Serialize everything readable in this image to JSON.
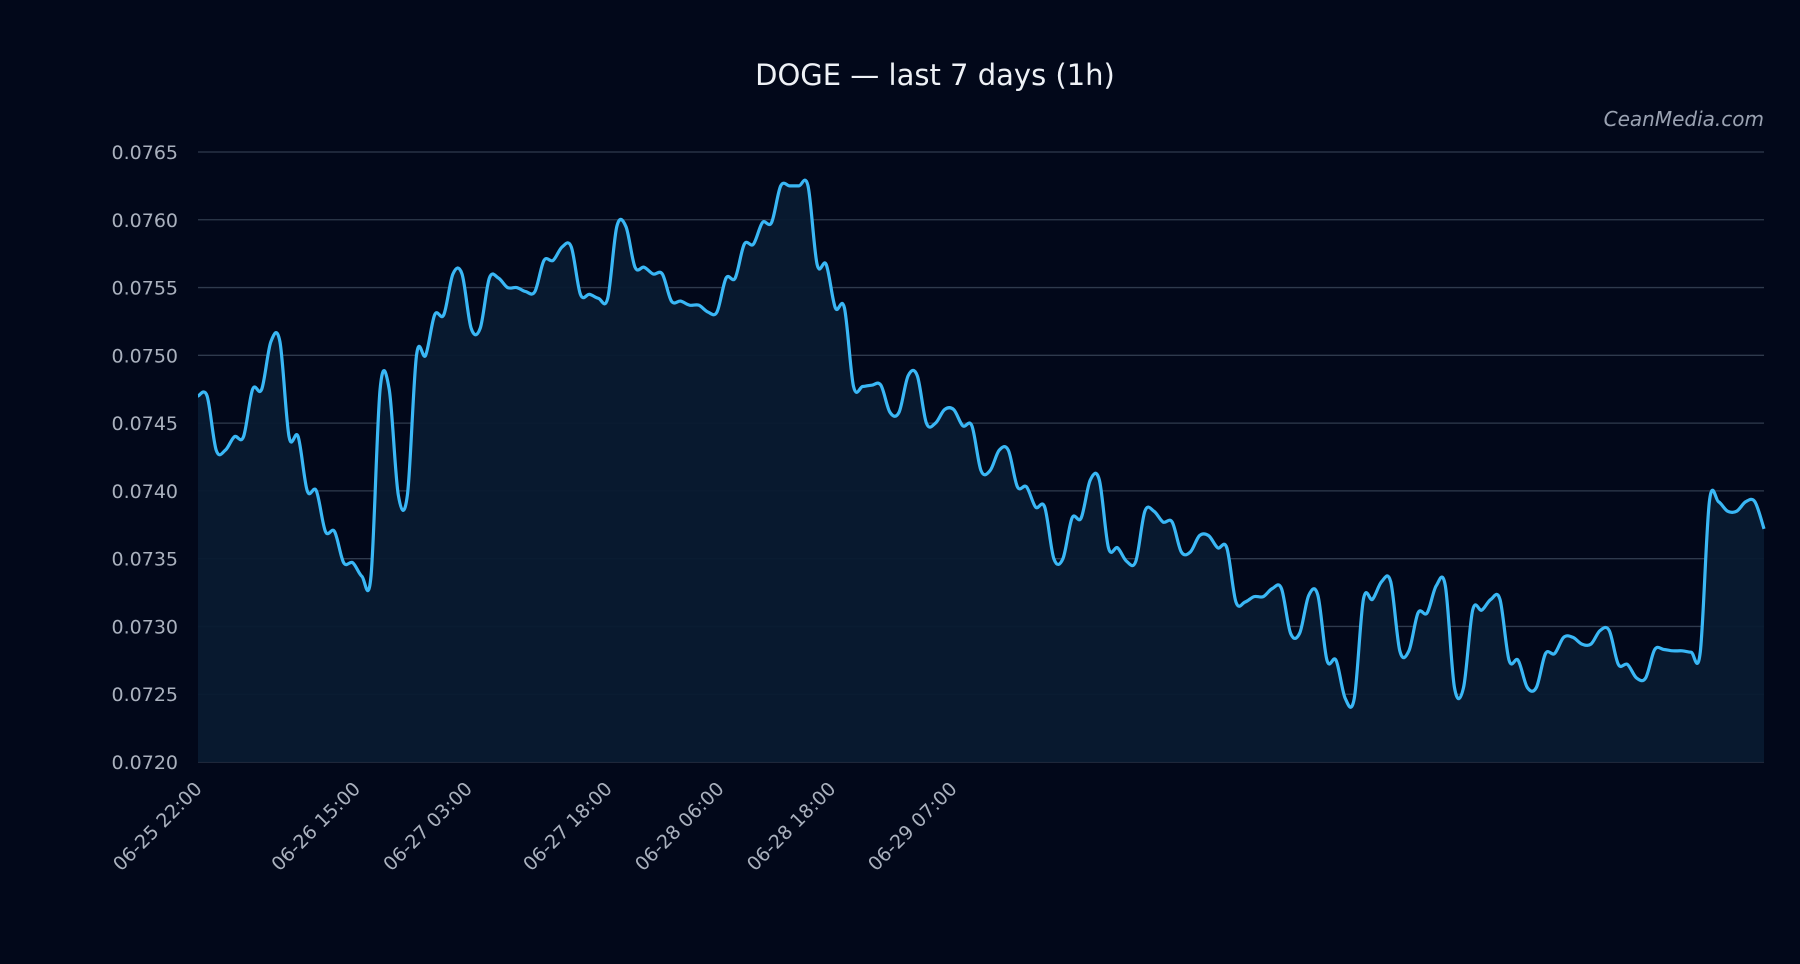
{
  "chart_data": {
    "type": "line",
    "title": "DOGE — last 7 days (1h)",
    "watermark": "CeanMedia.com",
    "xlabel": "",
    "ylabel": "",
    "ylim": [
      0.072,
      0.0765
    ],
    "yticks": [
      "0.0720",
      "0.0725",
      "0.0730",
      "0.0735",
      "0.0740",
      "0.0745",
      "0.0750",
      "0.0755",
      "0.0760",
      "0.0765"
    ],
    "xlim": [
      "06-25 22:00",
      "07-02 22:00"
    ],
    "xticks": [
      "06-25 22:00",
      "06-26 15:00",
      "06-27 03:00",
      "06-27 18:00",
      "06-28 06:00",
      "06-28 18:00",
      "06-29 07:00"
    ],
    "grid": true,
    "colors": {
      "line": "#3ab7f5",
      "fill": "#081a30",
      "background": "#02081a"
    },
    "series": [
      {
        "values": [
          0.0747,
          0.0747,
          0.0743,
          0.0743,
          0.0744,
          0.0744,
          0.07475,
          0.07475,
          0.0751,
          0.0751,
          0.0744,
          0.0744,
          0.074,
          0.074,
          0.0737,
          0.0737,
          0.07347,
          0.07347,
          0.07337,
          0.07337,
          0.07475,
          0.07475,
          0.07397,
          0.07397,
          0.075,
          0.075,
          0.0753,
          0.0753,
          0.0756,
          0.0756,
          0.0752,
          0.0752,
          0.07557,
          0.07557,
          0.0755,
          0.0755,
          0.07547,
          0.07547,
          0.0757,
          0.0757,
          0.0758,
          0.0758,
          0.07545,
          0.07545,
          0.07542,
          0.07542,
          0.07595,
          0.07595,
          0.07565,
          0.07565,
          0.0756,
          0.0756,
          0.0754,
          0.0754,
          0.07537,
          0.07537,
          0.07532,
          0.07532,
          0.07557,
          0.07557,
          0.07582,
          0.07582,
          0.07598,
          0.07598,
          0.07625,
          0.07625,
          0.07625,
          0.07625,
          0.07567,
          0.07567,
          0.07535,
          0.07535,
          0.07477,
          0.07477,
          0.07478,
          0.07478,
          0.07458,
          0.07458,
          0.07485,
          0.07485,
          0.0745,
          0.0745,
          0.0746,
          0.0746,
          0.07448,
          0.07448,
          0.07415,
          0.07415,
          0.0743,
          0.0743,
          0.07403,
          0.07403,
          0.07388,
          0.07388,
          0.0735,
          0.0735,
          0.0738,
          0.0738,
          0.07408,
          0.07408,
          0.07358,
          0.07358,
          0.07348,
          0.07348,
          0.07385,
          0.07385,
          0.07377,
          0.07377,
          0.07355,
          0.07355,
          0.07367,
          0.07367,
          0.07358,
          0.07358,
          0.07318,
          0.07318,
          0.07322,
          0.07322,
          0.07328,
          0.07328,
          0.07295,
          0.07295,
          0.07323,
          0.07323,
          0.07275,
          0.07275,
          0.07247,
          0.07247,
          0.0732,
          0.0732,
          0.07333,
          0.07333,
          0.07282,
          0.07282,
          0.0731,
          0.0731,
          0.0733,
          0.0733,
          0.07255,
          0.07255,
          0.07312,
          0.07312,
          0.0732,
          0.0732,
          0.07275,
          0.07275,
          0.07255,
          0.07255,
          0.0728,
          0.0728,
          0.07292,
          0.07292,
          0.07287,
          0.07287,
          0.07297,
          0.07297,
          0.07272,
          0.07272,
          0.07262,
          0.07262,
          0.07283,
          0.07283,
          0.07282,
          0.07282,
          0.07281,
          0.07281,
          0.07392,
          0.07392,
          0.07385,
          0.07385,
          0.07392,
          0.07392,
          0.07372
        ]
      }
    ]
  }
}
